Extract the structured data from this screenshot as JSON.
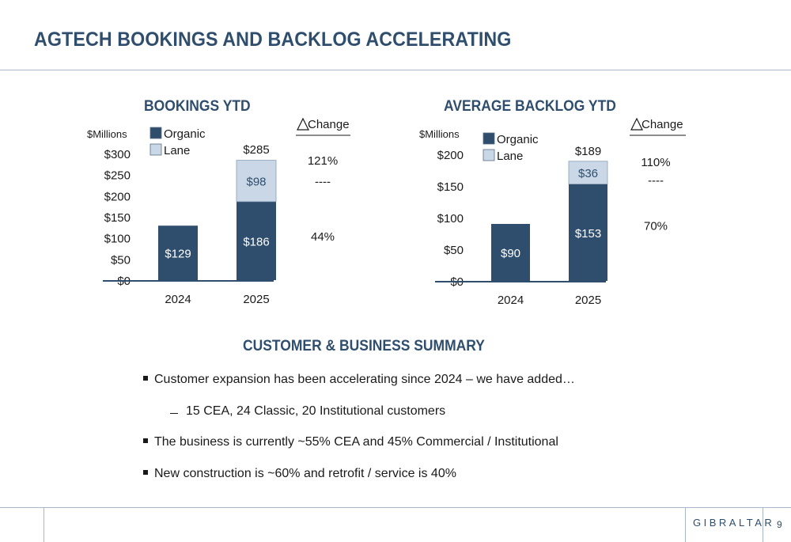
{
  "page": {
    "title": "AGTECH BOOKINGS AND BACKLOG ACCELERATING",
    "summary_title": "CUSTOMER & BUSINESS SUMMARY",
    "bullets": [
      "Customer expansion has been accelerating since 2024 – we have added…",
      "The business is currently ~55% CEA and 45% Commercial / Institutional",
      "New construction is ~60% and retrofit / service is 40%"
    ],
    "sub_bullet": "15 CEA, 24 Classic, 20 Institutional customers",
    "logo": "GIBRALTAR",
    "page_number": "9"
  },
  "colors": {
    "organic": "#2f4e6e",
    "lane": "#c9d7e6",
    "title": "#2f4e6e",
    "axis": "#2f4e6e"
  },
  "chart_data": [
    {
      "type": "bar",
      "stacked": true,
      "title": "BOOKINGS YTD",
      "ylabel": "$Millions",
      "ylim": [
        0,
        300
      ],
      "yticks": [
        0,
        50,
        100,
        150,
        200,
        250,
        300
      ],
      "ytick_labels": [
        "$0",
        "$50",
        "$100",
        "$150",
        "$200",
        "$250",
        "$300"
      ],
      "categories": [
        "2024",
        "2025"
      ],
      "series": [
        {
          "name": "Organic",
          "values": [
            129,
            186
          ],
          "labels": [
            "$129",
            "$186"
          ]
        },
        {
          "name": "Lane",
          "values": [
            0,
            98
          ],
          "labels": [
            "",
            "$98"
          ]
        }
      ],
      "totals": [
        null,
        285
      ],
      "total_labels": [
        "",
        "$285"
      ],
      "change_header": "Change",
      "changes": [
        {
          "label": "121%",
          "at": 285
        },
        {
          "label": "----",
          "at": 235
        },
        {
          "label": "44%",
          "at": 105
        }
      ]
    },
    {
      "type": "bar",
      "stacked": true,
      "title": "AVERAGE BACKLOG YTD",
      "ylabel": "$Millions",
      "ylim": [
        0,
        200
      ],
      "yticks": [
        0,
        50,
        100,
        150,
        200
      ],
      "ytick_labels": [
        "$0",
        "$50",
        "$100",
        "$150",
        "$200"
      ],
      "categories": [
        "2024",
        "2025"
      ],
      "series": [
        {
          "name": "Organic",
          "values": [
            90,
            153
          ],
          "labels": [
            "$90",
            "$153"
          ]
        },
        {
          "name": "Lane",
          "values": [
            0,
            36
          ],
          "labels": [
            "",
            "$36"
          ]
        }
      ],
      "totals": [
        null,
        189
      ],
      "total_labels": [
        "",
        "$189"
      ],
      "change_header": "Change",
      "changes": [
        {
          "label": "110%",
          "at": 189
        },
        {
          "label": "----",
          "at": 160
        },
        {
          "label": "70%",
          "at": 88
        }
      ]
    }
  ]
}
